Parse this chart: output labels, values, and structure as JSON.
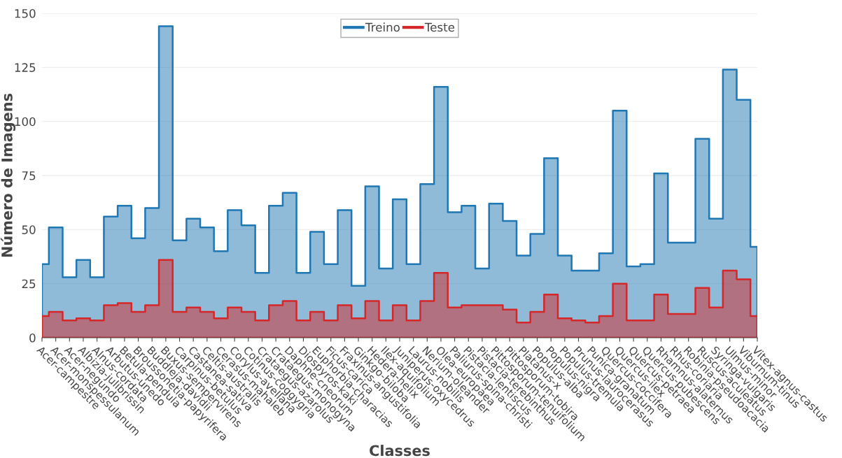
{
  "chart_data": {
    "type": "area",
    "xlabel": "Classes",
    "ylabel": "Número de Imagens",
    "categories": [
      "Acer-campestre",
      "Acer-monspessulanum",
      "Acer-negundo",
      "Albizia-julibrissin",
      "Alnus-cordata",
      "Arbutus-unedo",
      "Betula-pendula",
      "Broussonetia-papyrifera",
      "Buddleja-davidii",
      "Buxus-sempervirens",
      "Carpinus-betulus",
      "Castanea-sativa",
      "Celtis-australis",
      "Cerasus-mahaleb",
      "Corylus-avellana",
      "Cotinus-coggygria",
      "Crataegus-azarolus",
      "Crataegus-monogyna",
      "Daphne-cneorum",
      "Diospyros-kaki",
      "Euphorbia-characias",
      "Ficus-carica",
      "Fraxinus-angustifolia",
      "Ginkgo-biloba",
      "Hedera-helix",
      "Ilex-aquifolium",
      "Juniperus-oxycedrus",
      "Laurus-nobilis",
      "Nerium-oleander",
      "Olea-europaea",
      "Paliurus-spina-christi",
      "Pistacia-lentiscus",
      "Pistacia-terebinthus",
      "Pittosporum-tenuifolium",
      "Pittosporum-tobira",
      "Platanus-x",
      "Populus-alba",
      "Populus-nigra",
      "Populus-tremula",
      "Prunus-laurocerasus",
      "Punica-granatum",
      "Quercus-coccifera",
      "Quercus-ilex",
      "Quercus-petraea",
      "Quercus-pubescens",
      "Rhamnus-alaternus",
      "Rhus-coriaria",
      "Robinia-pseudoacacia",
      "Ruscus-aculeatus",
      "Syringa-vulgaris",
      "Ulmus-minor",
      "Viburnum-tinus",
      "Vitex-agnus-castus"
    ],
    "series": [
      {
        "name": "Treino",
        "color": "#1f77b4",
        "values": [
          34,
          51,
          28,
          36,
          28,
          56,
          61,
          46,
          60,
          144,
          45,
          55,
          51,
          40,
          59,
          52,
          30,
          61,
          67,
          30,
          49,
          34,
          59,
          24,
          70,
          32,
          64,
          34,
          71,
          116,
          58,
          61,
          32,
          62,
          54,
          38,
          48,
          83,
          38,
          31,
          31,
          39,
          105,
          33,
          34,
          76,
          44,
          44,
          92,
          55,
          124,
          110,
          42
        ]
      },
      {
        "name": "Teste",
        "color": "#d62728",
        "values": [
          10,
          12,
          8,
          9,
          8,
          15,
          16,
          12,
          15,
          36,
          12,
          14,
          12,
          9,
          14,
          12,
          8,
          15,
          17,
          8,
          12,
          8,
          15,
          9,
          17,
          8,
          15,
          8,
          17,
          30,
          14,
          15,
          15,
          15,
          13,
          7,
          12,
          20,
          9,
          8,
          7,
          10,
          25,
          8,
          8,
          20,
          11,
          11,
          23,
          14,
          31,
          27,
          10
        ]
      }
    ],
    "ylim": [
      0,
      150
    ],
    "yticks": [
      0,
      25,
      50,
      75,
      100,
      125,
      150
    ],
    "grid": "y",
    "legend": "top"
  }
}
